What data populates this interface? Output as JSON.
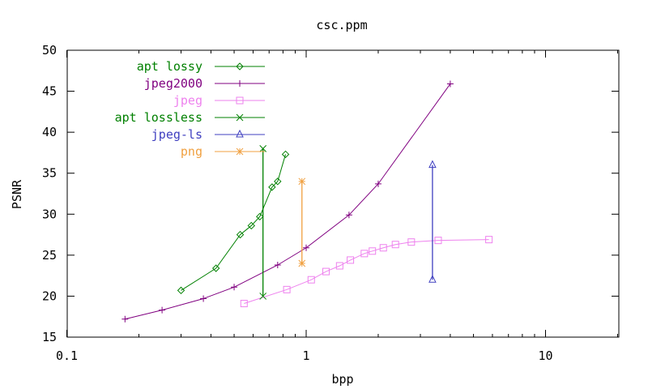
{
  "chart_data": {
    "type": "line",
    "title": "csc.ppm",
    "xlabel": "bpp",
    "ylabel": "PSNR",
    "xscale": "log",
    "xlim": [
      0.1,
      20
    ],
    "ylim": [
      15,
      50
    ],
    "xticks": [
      "0.1",
      "1",
      "10"
    ],
    "yticks": [
      "15",
      "20",
      "25",
      "30",
      "35",
      "40",
      "45",
      "50"
    ],
    "grid": false,
    "legend_position": "top-left",
    "series": [
      {
        "name": "apt lossy",
        "color": "#008000",
        "marker": "diamond",
        "x": [
          0.3,
          0.42,
          0.53,
          0.59,
          0.64,
          0.72,
          0.76,
          0.82
        ],
        "y": [
          20.7,
          23.4,
          27.5,
          28.6,
          29.7,
          33.3,
          34.0,
          37.3
        ]
      },
      {
        "name": "jpeg2000",
        "color": "#800080",
        "marker": "plus",
        "x": [
          0.175,
          0.25,
          0.372,
          0.5,
          0.76,
          1.0,
          1.51,
          2.0,
          4.0
        ],
        "y": [
          17.2,
          18.3,
          19.7,
          21.1,
          23.8,
          25.9,
          29.9,
          33.7,
          45.9
        ]
      },
      {
        "name": "jpeg",
        "color": "#ee82ee",
        "marker": "square",
        "x": [
          0.55,
          0.83,
          1.05,
          1.21,
          1.38,
          1.53,
          1.75,
          1.89,
          2.1,
          2.36,
          2.75,
          3.56,
          5.8
        ],
        "y": [
          19.1,
          20.8,
          22.0,
          23.0,
          23.7,
          24.4,
          25.2,
          25.5,
          25.9,
          26.3,
          26.6,
          26.8,
          26.9
        ]
      },
      {
        "name": "apt lossless",
        "color": "#008000",
        "marker": "x",
        "x": [
          0.66,
          0.66
        ],
        "y": [
          38.0,
          20.0
        ]
      },
      {
        "name": "jpeg-ls",
        "color": "#4040c0",
        "marker": "triangle",
        "x": [
          3.37,
          3.37
        ],
        "y": [
          36.0,
          22.0
        ]
      },
      {
        "name": "png",
        "color": "#f0a040",
        "marker": "star",
        "x": [
          0.96,
          0.96
        ],
        "y": [
          34.0,
          24.0
        ]
      }
    ]
  }
}
